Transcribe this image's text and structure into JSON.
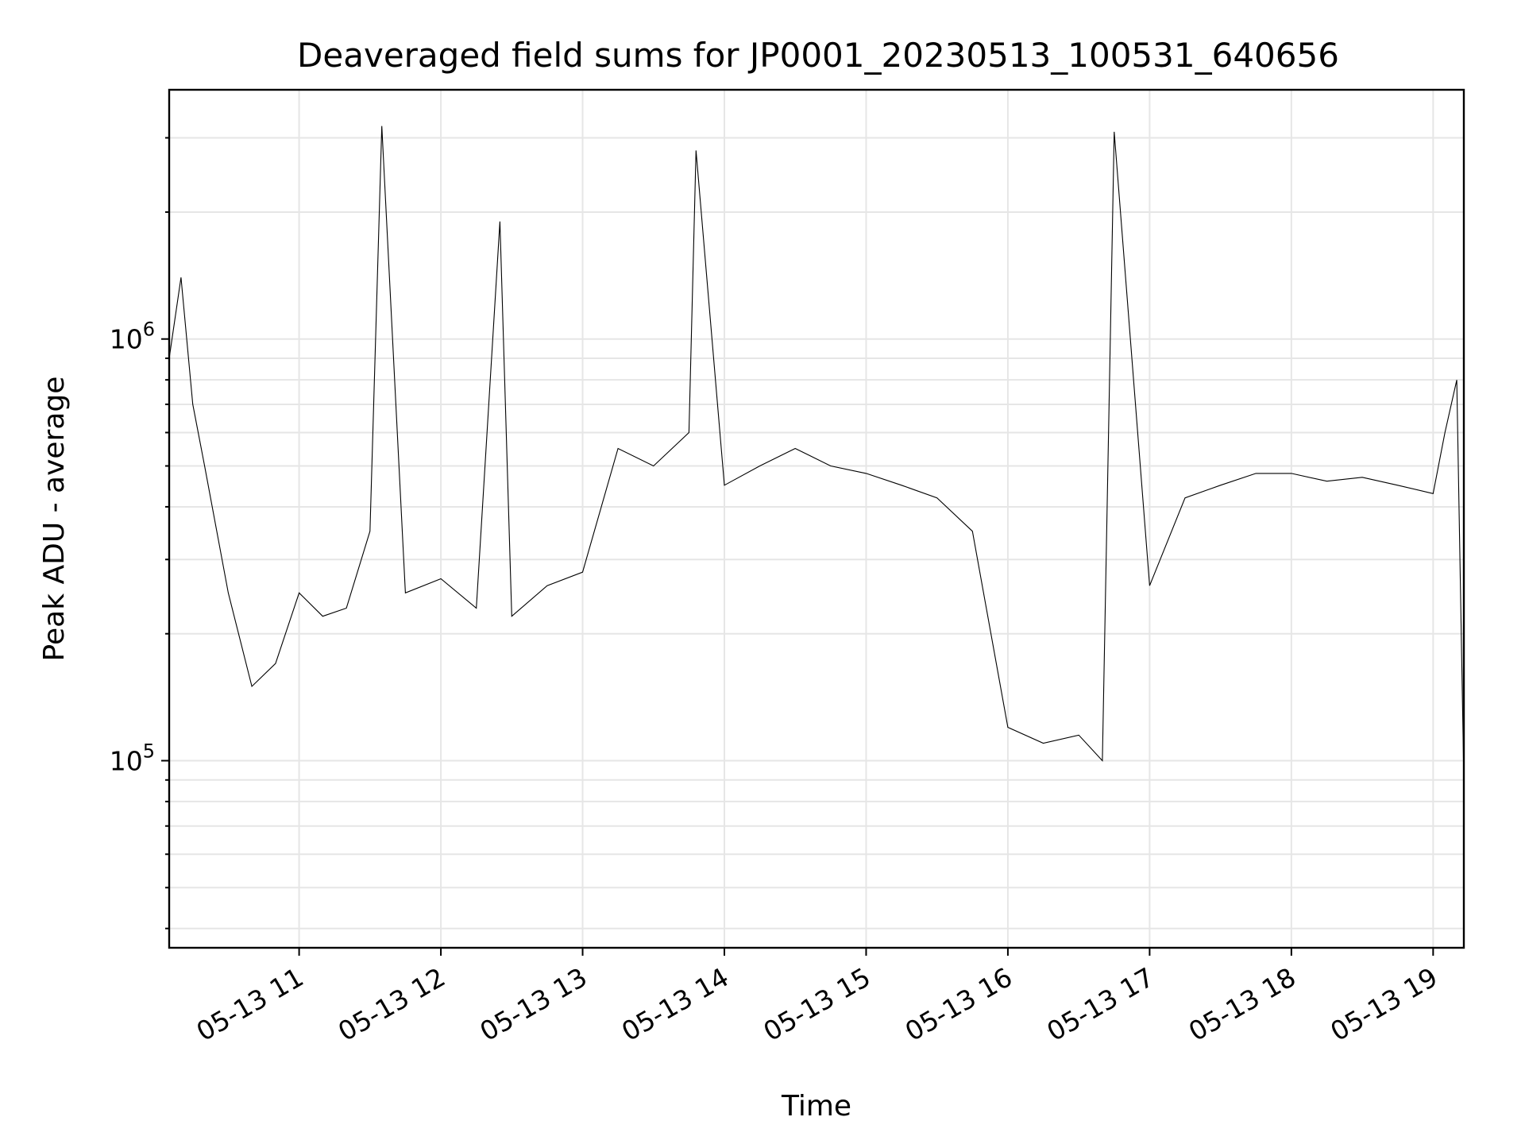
{
  "chart_data": {
    "type": "line",
    "title": "Deaveraged field sums for JP0001_20230513_100531_640656",
    "xlabel": "Time",
    "ylabel": "Peak ADU - average",
    "yscale": "log",
    "ylim": [
      36000,
      3900000
    ],
    "xlim": [
      "2023-05-13 10:05",
      "2023-05-13 19:13"
    ],
    "grid": true,
    "x_tick_labels": [
      "05-13 11",
      "05-13 12",
      "05-13 13",
      "05-13 14",
      "05-13 15",
      "05-13 16",
      "05-13 17",
      "05-13 18",
      "05-13 19"
    ],
    "y_tick_labels": [
      {
        "base": "10",
        "exp": "5"
      },
      {
        "base": "10",
        "exp": "6"
      }
    ],
    "line_color": "#000000",
    "series": [
      {
        "x": [
          "2023-05-13 10:05",
          "2023-05-13 10:10",
          "2023-05-13 10:15",
          "2023-05-13 10:20",
          "2023-05-13 10:30",
          "2023-05-13 10:40",
          "2023-05-13 10:50",
          "2023-05-13 11:00",
          "2023-05-13 11:10",
          "2023-05-13 11:20",
          "2023-05-13 11:30",
          "2023-05-13 11:35",
          "2023-05-13 11:45",
          "2023-05-13 12:00",
          "2023-05-13 12:15",
          "2023-05-13 12:25",
          "2023-05-13 12:30",
          "2023-05-13 12:45",
          "2023-05-13 13:00",
          "2023-05-13 13:15",
          "2023-05-13 13:30",
          "2023-05-13 13:45",
          "2023-05-13 13:48",
          "2023-05-13 14:00",
          "2023-05-13 14:15",
          "2023-05-13 14:30",
          "2023-05-13 14:45",
          "2023-05-13 15:00",
          "2023-05-13 15:15",
          "2023-05-13 15:30",
          "2023-05-13 15:45",
          "2023-05-13 16:00",
          "2023-05-13 16:15",
          "2023-05-13 16:30",
          "2023-05-13 16:40",
          "2023-05-13 16:45",
          "2023-05-13 17:00",
          "2023-05-13 17:15",
          "2023-05-13 17:30",
          "2023-05-13 17:45",
          "2023-05-13 18:00",
          "2023-05-13 18:15",
          "2023-05-13 18:30",
          "2023-05-13 18:45",
          "2023-05-13 19:00",
          "2023-05-13 19:05",
          "2023-05-13 19:10",
          "2023-05-13 19:13"
        ],
        "values": [
          900000,
          1400000,
          700000,
          500000,
          250000,
          150000,
          170000,
          250000,
          220000,
          230000,
          350000,
          3200000,
          250000,
          270000,
          230000,
          1900000,
          220000,
          260000,
          280000,
          550000,
          500000,
          600000,
          2800000,
          450000,
          500000,
          550000,
          500000,
          480000,
          450000,
          420000,
          350000,
          120000,
          110000,
          115000,
          100000,
          3100000,
          260000,
          420000,
          450000,
          480000,
          480000,
          460000,
          470000,
          450000,
          430000,
          600000,
          800000,
          90000
        ]
      }
    ]
  }
}
